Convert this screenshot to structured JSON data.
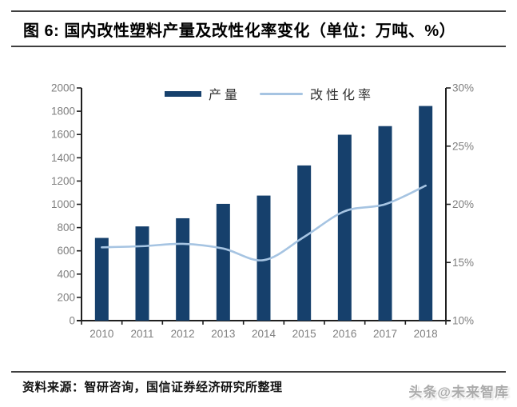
{
  "header": {
    "title": "图 6: 国内改性塑料产量及改性化率变化（单位：万吨、%）"
  },
  "legend": {
    "bar_label": "产量",
    "line_label": "改性化率"
  },
  "footer": {
    "source": "资料来源：智研咨询，国信证券经济研究所整理",
    "watermark": "头条@未来智库"
  },
  "colors": {
    "bar": "#16406C",
    "line": "#A6C4E2",
    "axis": "#1F1F1F",
    "tick_label": "#7F7F7F"
  },
  "chart_data": {
    "type": "bar+line",
    "title": "图 6: 国内改性塑料产量及改性化率变化（单位：万吨、%）",
    "categories": [
      "2010",
      "2011",
      "2012",
      "2013",
      "2014",
      "2015",
      "2016",
      "2017",
      "2018"
    ],
    "series": [
      {
        "name": "产量",
        "type": "bar",
        "axis": "left",
        "values": [
          711,
          810,
          880,
          1004,
          1075,
          1334,
          1598,
          1672,
          1845
        ]
      },
      {
        "name": "改性化率",
        "type": "line",
        "axis": "right",
        "values": [
          16.3,
          16.4,
          16.6,
          16.2,
          15.2,
          17.2,
          19.4,
          20.0,
          21.6
        ]
      }
    ],
    "left_axis": {
      "min": 0,
      "max": 2000,
      "step": 200,
      "tick_labels": [
        "0",
        "200",
        "400",
        "600",
        "800",
        "1000",
        "1200",
        "1400",
        "1600",
        "1800",
        "2000"
      ]
    },
    "right_axis": {
      "min": 10,
      "max": 30,
      "step": 5,
      "tick_labels": [
        "10%",
        "15%",
        "20%",
        "25%",
        "30%"
      ]
    },
    "legend_position": "top",
    "grid": false
  }
}
